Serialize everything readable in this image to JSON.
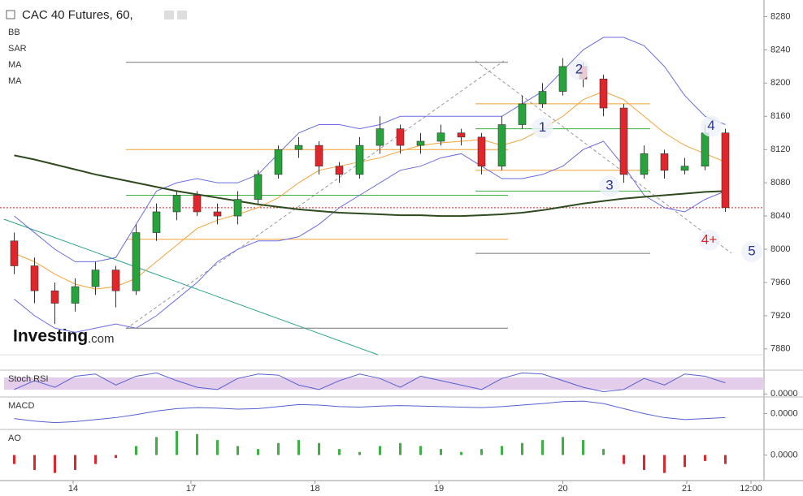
{
  "chart_data": [
    {
      "type": "candlestick",
      "title": "CAC 40 Futures, 60,",
      "indicator_labels": [
        "BB",
        "SAR",
        "MA",
        "MA"
      ],
      "logo": {
        "main": "Investing",
        "suffix": ".com"
      },
      "xlim": [
        -0.5,
        36.9
      ],
      "xticks": [
        {
          "value": 2.9,
          "label": "14"
        },
        {
          "value": 8.7,
          "label": "17"
        },
        {
          "value": 14.8,
          "label": "18"
        },
        {
          "value": 20.9,
          "label": "19"
        },
        {
          "value": 27,
          "label": "20"
        },
        {
          "value": 33.1,
          "label": "21"
        },
        {
          "value": 36.26,
          "label": "12:00"
        }
      ],
      "ylim": [
        7873,
        8300
      ],
      "yticks": [
        7880,
        7920,
        7960,
        8000,
        8040,
        8080,
        8120,
        8160,
        8200,
        8240,
        8280
      ],
      "up_color": "#26a33a",
      "down_color": "#e0262b",
      "open": [
        8010,
        7980,
        7950,
        7935,
        7955,
        7975,
        7950,
        8020,
        8045,
        8065,
        8045,
        8040,
        8060,
        8090,
        8120,
        8125,
        8100,
        8090,
        8125,
        8145,
        8125,
        8130,
        8140,
        8135,
        8100,
        8150,
        8175,
        8190,
        8220,
        8205,
        8170,
        8090,
        8115,
        8095,
        8100,
        8140
      ],
      "high": [
        8020,
        7990,
        7960,
        7965,
        7985,
        7980,
        8030,
        8055,
        8070,
        8070,
        8055,
        8070,
        8095,
        8125,
        8135,
        8130,
        8105,
        8135,
        8160,
        8150,
        8140,
        8150,
        8145,
        8140,
        8160,
        8185,
        8200,
        8230,
        8225,
        8210,
        8175,
        8125,
        8120,
        8110,
        8150,
        8145
      ],
      "low": [
        7970,
        7935,
        7910,
        7925,
        7945,
        7930,
        7945,
        8010,
        8035,
        8040,
        8030,
        8030,
        8055,
        8085,
        8110,
        8090,
        8080,
        8085,
        8115,
        8115,
        8115,
        8125,
        8125,
        8090,
        8095,
        8145,
        8170,
        8185,
        8195,
        8160,
        8080,
        8085,
        8085,
        8090,
        8095,
        8045
      ],
      "close": [
        7980,
        7950,
        7935,
        7955,
        7975,
        7950,
        8020,
        8045,
        8065,
        8045,
        8040,
        8060,
        8090,
        8120,
        8125,
        8100,
        8090,
        8125,
        8145,
        8125,
        8130,
        8140,
        8135,
        8100,
        8150,
        8175,
        8190,
        8220,
        8205,
        8170,
        8090,
        8115,
        8095,
        8100,
        8140,
        8050
      ],
      "overlays": [
        {
          "color": "#6a6ee0",
          "values": [
            8040,
            8020,
            8000,
            7985,
            7985,
            7990,
            8030,
            8070,
            8080,
            8085,
            8080,
            8080,
            8090,
            8115,
            8140,
            8150,
            8150,
            8145,
            8150,
            8160,
            8160,
            8160,
            8160,
            8160,
            8160,
            8175,
            8190,
            8215,
            8240,
            8255,
            8255,
            8245,
            8220,
            8185,
            8160,
            8150
          ]
        },
        {
          "color": "#6a6ee0",
          "values": [
            7940,
            7920,
            7905,
            7900,
            7905,
            7910,
            7905,
            7920,
            7940,
            7960,
            7985,
            8000,
            8010,
            8010,
            8015,
            8030,
            8050,
            8065,
            8080,
            8095,
            8100,
            8110,
            8115,
            8100,
            8085,
            8085,
            8090,
            8100,
            8120,
            8130,
            8100,
            8065,
            8050,
            8045,
            8060,
            8070
          ]
        },
        {
          "color": "#f5a33a",
          "values": [
            7995,
            7985,
            7970,
            7958,
            7952,
            7955,
            7965,
            7985,
            8005,
            8025,
            8035,
            8042,
            8050,
            8062,
            8080,
            8095,
            8100,
            8105,
            8110,
            8118,
            8125,
            8128,
            8130,
            8132,
            8125,
            8132,
            8145,
            8160,
            8180,
            8190,
            8180,
            8160,
            8140,
            8125,
            8115,
            8105
          ]
        },
        {
          "color": "#2f4a1e",
          "values": [
            8113,
            8108,
            8102,
            8096,
            8090,
            8085,
            8080,
            8075,
            8070,
            8066,
            8062,
            8058,
            8054,
            8051,
            8048,
            8046,
            8044,
            8043,
            8042,
            8041,
            8041,
            8040,
            8040,
            8041,
            8042,
            8044,
            8047,
            8051,
            8055,
            8058,
            8061,
            8063,
            8065,
            8067,
            8069,
            8070
          ]
        }
      ],
      "price_line": {
        "value": 8050,
        "color": "#d02020"
      },
      "levels_left": [
        {
          "value": 8225,
          "color": "#777"
        },
        {
          "value": 8120,
          "color": "#f0a030"
        },
        {
          "value": 8065,
          "color": "#3cb043"
        },
        {
          "value": 8012,
          "color": "#f0a030"
        },
        {
          "value": 7905,
          "color": "#777"
        }
      ],
      "levels_right": [
        {
          "value": 8175,
          "color": "#f0a030"
        },
        {
          "value": 8145,
          "color": "#3cb043"
        },
        {
          "value": 8095,
          "color": "#f0a030"
        },
        {
          "value": 8070,
          "color": "#3cb043"
        },
        {
          "value": 7995,
          "color": "#777"
        }
      ],
      "annotations": [
        {
          "text": "1",
          "x": 26,
          "y": 8146,
          "color": "#2a3590"
        },
        {
          "text": "2",
          "x": 27.8,
          "y": 8216,
          "color": "#2a3590"
        },
        {
          "text": "3",
          "x": 29.3,
          "y": 8076,
          "color": "#2a3590"
        },
        {
          "text": "4",
          "x": 34.3,
          "y": 8148,
          "color": "#2a3590"
        },
        {
          "text": "4+",
          "x": 34.2,
          "y": 8011,
          "color": "#e02020"
        },
        {
          "text": "5",
          "x": 36.3,
          "y": 7997,
          "color": "#2a3590"
        }
      ]
    },
    {
      "type": "line",
      "title": "Stoch RSI",
      "ylim": [
        -10,
        100
      ],
      "yticks": [
        {
          "value": 0,
          "label": "0.0000"
        }
      ],
      "color": "#5560d0",
      "values": [
        20,
        60,
        30,
        80,
        90,
        40,
        80,
        95,
        60,
        30,
        20,
        70,
        90,
        85,
        40,
        20,
        60,
        90,
        70,
        30,
        80,
        60,
        40,
        20,
        70,
        95,
        90,
        60,
        30,
        10,
        20,
        70,
        40,
        90,
        80,
        50
      ]
    },
    {
      "type": "line",
      "title": "MACD",
      "ylim": [
        -30,
        30
      ],
      "yticks": [
        {
          "value": 0,
          "label": "0.0000"
        }
      ],
      "color": "#5560d0",
      "values": [
        -10,
        -15,
        -18,
        -16,
        -12,
        -8,
        -2,
        5,
        10,
        12,
        11,
        9,
        10,
        14,
        18,
        17,
        14,
        13,
        15,
        16,
        15,
        14,
        13,
        12,
        14,
        17,
        20,
        24,
        25,
        20,
        10,
        0,
        -8,
        -12,
        -10,
        -8
      ]
    },
    {
      "type": "bar",
      "title": "AO",
      "ylim": [
        -8,
        8
      ],
      "yticks": [
        {
          "value": 0,
          "label": "0.0000"
        }
      ],
      "up_color": "#3cb043",
      "down_color": "#e0262b",
      "values": [
        -3,
        -5,
        -6,
        -5,
        -3,
        -1,
        3,
        6,
        8,
        7,
        5,
        3,
        2,
        4,
        5,
        4,
        2,
        1,
        3,
        4,
        3,
        2,
        1,
        2,
        3,
        4,
        5,
        6,
        5,
        2,
        -3,
        -5,
        -6,
        -4,
        -2,
        -3
      ]
    }
  ]
}
